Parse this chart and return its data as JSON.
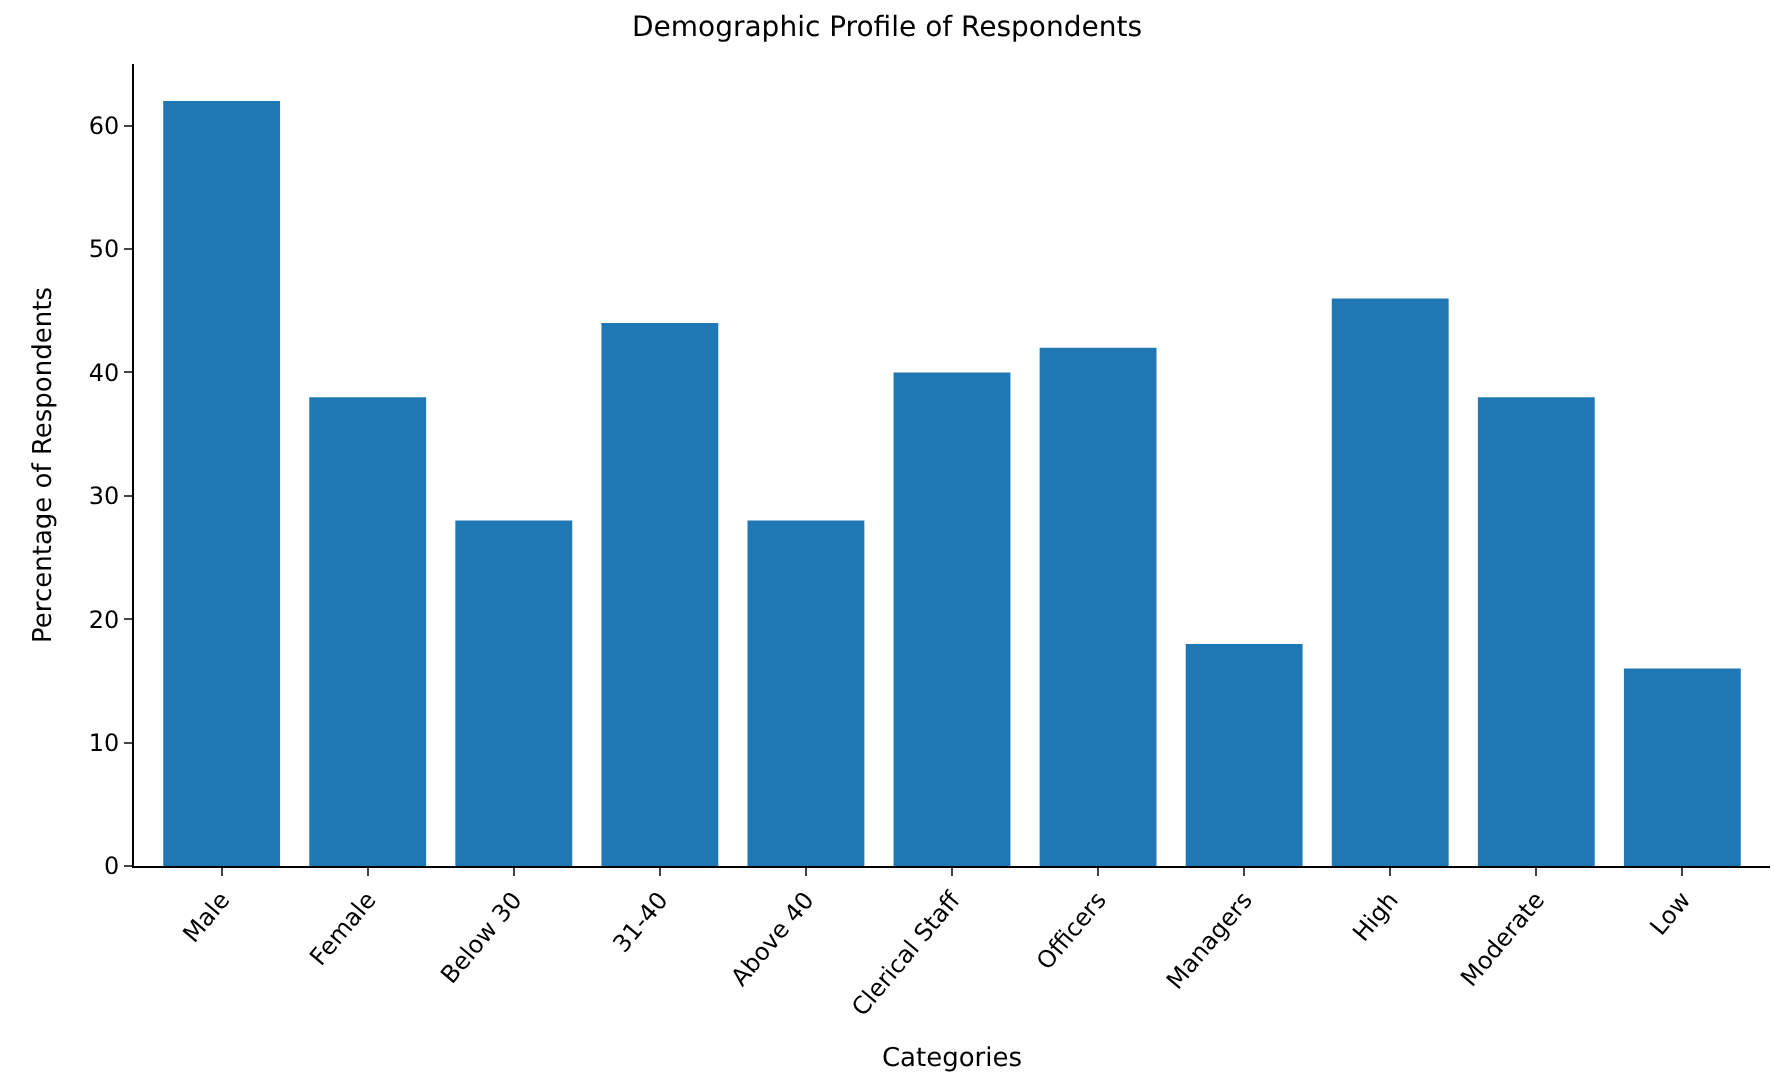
{
  "chart_data": {
    "type": "bar",
    "title": "Demographic Profile of Respondents",
    "xlabel": "Categories",
    "ylabel": "Percentage of Respondents",
    "categories": [
      "Male",
      "Female",
      "Below 30",
      "31-40",
      "Above 40",
      "Clerical Staff",
      "Officers",
      "Managers",
      "High",
      "Moderate",
      "Low"
    ],
    "values": [
      62,
      38,
      28,
      44,
      28,
      40,
      42,
      18,
      46,
      38,
      16
    ],
    "color": "#1f77b4",
    "ylim": [
      0,
      65
    ],
    "yticks": [
      0,
      10,
      20,
      30,
      40,
      50,
      60
    ]
  }
}
